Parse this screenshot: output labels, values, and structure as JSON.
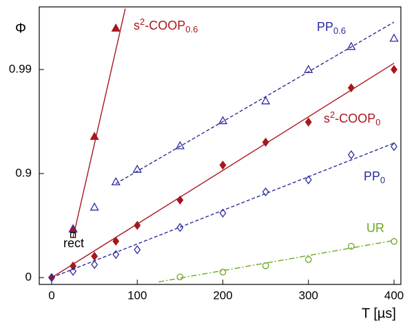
{
  "chart_data": {
    "type": "scatter",
    "y_label": "Φ",
    "x_label": "T [µs]",
    "yscale": "neg-log-complement",
    "xlim": [
      -14.5,
      408
    ],
    "xticks": [
      0,
      100,
      200,
      300,
      400
    ],
    "ylim": [
      -0.164,
      0.9975
    ],
    "yticks": [
      0,
      0.9,
      0.99
    ],
    "series": [
      {
        "label": [
          [
            "s"
          ],
          [
            "2",
            "sup"
          ],
          [
            "-COOP"
          ],
          [
            "0.6",
            "sub"
          ]
        ],
        "color": "#a8161e",
        "marker": "triangle",
        "filled": true,
        "linestyle": "solid",
        "x": [
          25,
          50,
          75
        ],
        "values": [
          0.66,
          0.956,
          0.996
        ],
        "fit": {
          "x": [
            25,
            86
          ],
          "values": [
            0.587,
            0.9974
          ]
        }
      },
      {
        "label": [
          [
            "PP"
          ],
          [
            "0.6",
            "sub"
          ]
        ],
        "color": "#2a2a9c",
        "marker": "triangle",
        "filled": false,
        "linestyle": "dashed",
        "x": [
          25,
          50,
          75,
          100,
          150,
          200,
          250,
          300,
          350,
          400
        ],
        "values": [
          0.66,
          0.79,
          0.88,
          0.909,
          0.946,
          0.969,
          0.98,
          0.99,
          0.994,
          0.995
        ],
        "fit": {
          "x": [
            75,
            400
          ],
          "values": [
            0.875,
            0.9965
          ]
        }
      },
      {
        "label": [
          [
            "s"
          ],
          [
            "2",
            "sup"
          ],
          [
            "-COOP"
          ],
          [
            "0",
            "sub"
          ]
        ],
        "color": "#a8161e",
        "marker": "diamond",
        "filled": true,
        "linestyle": "solid",
        "x": [
          0,
          25,
          50,
          75,
          100,
          150,
          200,
          250,
          300,
          350,
          400
        ],
        "values": [
          0,
          0.225,
          0.376,
          0.553,
          0.685,
          0.82,
          0.917,
          0.95,
          0.968,
          0.985,
          0.99
        ],
        "fit": {
          "x": [
            0,
            400
          ],
          "values": [
            0,
            0.9913
          ]
        }
      },
      {
        "label": [
          [
            "PP"
          ],
          [
            "0",
            "sub"
          ]
        ],
        "color": "#2a2a9c",
        "marker": "diamond",
        "filled": false,
        "linestyle": "dashed",
        "x": [
          0,
          25,
          50,
          75,
          100,
          150,
          200,
          250,
          300,
          350,
          400
        ],
        "values": [
          0,
          0.13,
          0.25,
          0.4,
          0.46,
          0.67,
          0.76,
          0.85,
          0.885,
          0.934,
          0.945
        ],
        "fit": {
          "x": [
            0,
            400
          ],
          "values": [
            0,
            0.949
          ]
        }
      },
      {
        "label": [
          [
            "UR"
          ]
        ],
        "color": "#6aa81e",
        "marker": "circle",
        "filled": false,
        "linestyle": "dashdot",
        "x": [
          150,
          200,
          250,
          300,
          350,
          400
        ],
        "values": [
          0.015,
          0.115,
          0.23,
          0.33,
          0.5,
          0.55
        ],
        "fit": {
          "x": [
            125,
            400
          ],
          "values": [
            -0.1,
            0.56
          ]
        }
      },
      {
        "label": [
          [
            "rect"
          ]
        ],
        "color": "#000000",
        "marker": "square",
        "filled": false,
        "x": [
          25
        ],
        "values": [
          0.61
        ]
      }
    ]
  }
}
